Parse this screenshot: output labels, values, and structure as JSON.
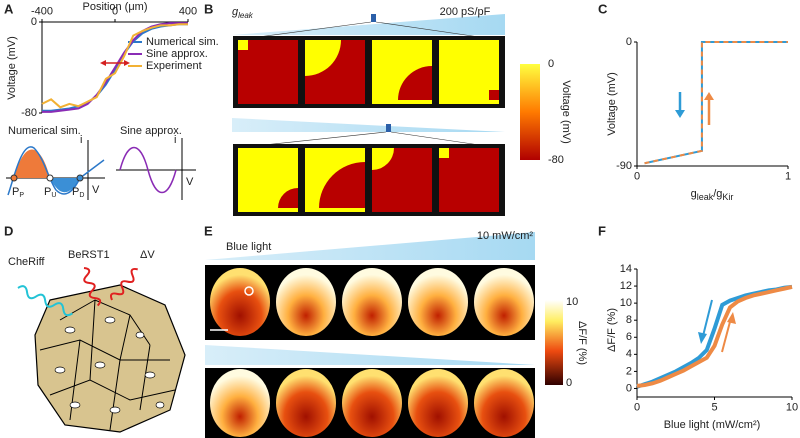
{
  "panel_labels": [
    "A",
    "B",
    "C",
    "D",
    "E",
    "F"
  ],
  "chart_data": [
    {
      "type": "line",
      "x_label": "Position (μm)",
      "y_label": "Voltage (mV)",
      "x": [
        -400,
        -350,
        -300,
        -250,
        -200,
        -150,
        -100,
        -50,
        0,
        50,
        100,
        150,
        200,
        250,
        300,
        350,
        400
      ],
      "xlim": [
        -400,
        400
      ],
      "xticks": [
        -400,
        0,
        400
      ],
      "ylim": [
        -80,
        0
      ],
      "yticks": [
        -80,
        0
      ],
      "legend": "right",
      "series": [
        {
          "name": "Numerical sim.",
          "color": "#2b78c9",
          "values": [
            -78,
            -78,
            -77,
            -76,
            -74,
            -71,
            -65,
            -55,
            -42,
            -28,
            -17,
            -10,
            -6,
            -4,
            -3,
            -2,
            -2
          ]
        },
        {
          "name": "Sine approx.",
          "color": "#8a2cb5",
          "values": [
            -79,
            -79,
            -78,
            -77,
            -76,
            -72,
            -64,
            -53,
            -40,
            -27,
            -16,
            -8,
            -4,
            -2,
            -1,
            -1,
            -1
          ]
        },
        {
          "name": "Experiment",
          "color": "#f2b134",
          "values": [
            -72,
            -68,
            -75,
            -72,
            -74,
            -70,
            -66,
            -50,
            -45,
            -30,
            -12,
            -8,
            -5,
            -3,
            -3,
            -2,
            -2
          ]
        }
      ]
    },
    {
      "type": "line",
      "y_label": "Voltage (mV)",
      "x_label": [
        {
          "symbol": "g",
          "subscript": "leak"
        },
        {
          "symbol": "/g",
          "subscript": "Kir"
        }
      ],
      "x": [
        0.05,
        0.43,
        0.43,
        1
      ],
      "xlim": [
        0,
        1
      ],
      "xticks": [
        0,
        1
      ],
      "ylim": [
        -90,
        0
      ],
      "yticks": [
        -90,
        0
      ],
      "series": [
        {
          "color": "#2e9bd6",
          "dash": false,
          "values": [
            -88,
            -79,
            0,
            0
          ]
        },
        {
          "color": "#ee8a45",
          "dash": true,
          "values": [
            -88,
            -79,
            0,
            0
          ]
        }
      ]
    },
    {
      "type": "line",
      "x_label": "Blue light (mW/cm²)",
      "y_label": "ΔF/F (%)",
      "x": [
        0,
        0.5,
        1,
        1.5,
        2,
        2.5,
        3,
        3.5,
        4,
        4.5,
        5,
        5.5,
        6,
        6.5,
        7,
        7.5,
        8,
        8.5,
        9,
        9.5,
        10
      ],
      "xlim": [
        0,
        10
      ],
      "xticks": [
        0,
        5,
        10
      ],
      "ylim": [
        -1,
        14
      ],
      "yticks": [
        0,
        2,
        4,
        6,
        8,
        10,
        12,
        14
      ],
      "series": [
        {
          "color": "#2e9bd6",
          "width": 4,
          "values": [
            0.2,
            0.5,
            0.8,
            1.2,
            1.6,
            2.0,
            2.5,
            3.0,
            3.6,
            4.5,
            7.0,
            9.8,
            10.3,
            10.6,
            10.9,
            11.1,
            11.3,
            11.5,
            11.6,
            11.8,
            11.9
          ]
        },
        {
          "color": "#ee8a45",
          "width": 4,
          "values": [
            0.3,
            0.4,
            0.6,
            0.9,
            1.3,
            1.7,
            2.1,
            2.6,
            3.1,
            3.6,
            5.0,
            7.5,
            9.5,
            10.2,
            10.6,
            10.9,
            11.1,
            11.3,
            11.5,
            11.7,
            11.9
          ]
        }
      ]
    }
  ],
  "inset_a": {
    "left_title": "Numerical sim.",
    "right_title": "Sine approx.",
    "current_label": "i",
    "voltage_label": "V",
    "points": [
      {
        "symbol": "P",
        "subscript": "P"
      },
      {
        "symbol": "P",
        "subscript": "U"
      },
      {
        "symbol": "P",
        "subscript": "D"
      }
    ]
  },
  "panel_b": {
    "gradient_label": {
      "symbol": "g",
      "subscript": "leak"
    },
    "gradient_max": "200 pS/pF",
    "colorbar_title": "Voltage (mV)",
    "colorbar_ticks": [
      0,
      -80
    ]
  },
  "panel_d": {
    "labels": [
      "CheRiff",
      "BeRST1",
      "ΔV"
    ]
  },
  "panel_e": {
    "gradient_label": "Blue light",
    "gradient_max": "10 mW/cm²",
    "colorbar_title": "ΔF/F (%)",
    "colorbar_ticks": [
      10,
      0
    ]
  }
}
